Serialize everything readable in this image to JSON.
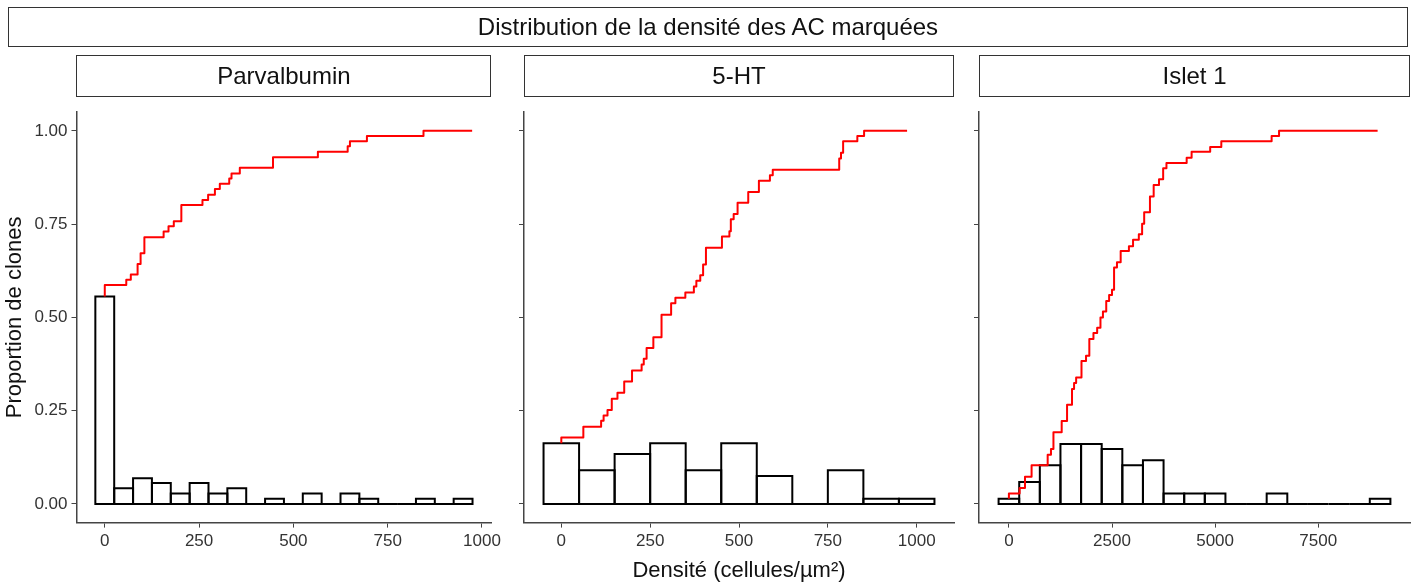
{
  "chart_data": [
    {
      "type": "histogram",
      "subtitle": "Parvalbumin",
      "ylabel": "Proportion de clones",
      "color": "#000000",
      "bins": [
        -25,
        25,
        75,
        125,
        175,
        225,
        275,
        325,
        375,
        425,
        475,
        525,
        575,
        625,
        675,
        725,
        775,
        825,
        875,
        925,
        975
      ],
      "values": [
        0.556,
        0.042,
        0.069,
        0.056,
        0.028,
        0.056,
        0.028,
        0.042,
        0,
        0.014,
        0,
        0.028,
        0,
        0.028,
        0.014,
        0,
        0,
        0.014,
        0,
        0.014
      ],
      "series": [
        {
          "type": "step",
          "color": "#ff0000",
          "x": [
            0,
            57,
            69,
            87,
            95,
            105,
            156,
            169,
            183,
            203,
            259,
            274,
            292,
            305,
            330,
            336,
            358,
            446,
            565,
            644,
            650,
            695,
            845,
            974
          ],
          "values": [
            0.556,
            0.587,
            0.601,
            0.615,
            0.643,
            0.672,
            0.715,
            0.73,
            0.744,
            0.758,
            0.801,
            0.815,
            0.829,
            0.844,
            0.858,
            0.872,
            0.886,
            0.901,
            0.929,
            0.944,
            0.959,
            0.972,
            0.986,
            1.0
          ]
        }
      ],
      "xlim": [
        -75,
        1025
      ],
      "xticks": [
        0,
        250,
        500,
        750,
        1000
      ],
      "ylim": [
        -0.05,
        1.05
      ],
      "yticks": [
        {
          "value": 0,
          "label": "0.00"
        },
        {
          "value": 0.25,
          "label": "0.25"
        },
        {
          "value": 0.5,
          "label": "0.50"
        },
        {
          "value": 0.75,
          "label": "0.75"
        },
        {
          "value": 1,
          "label": "1.00"
        }
      ],
      "grid": false
    },
    {
      "type": "histogram",
      "title": "Distribution de la densité des AC marquées",
      "subtitle": "5-HT",
      "xlabel": "Densité (cellules/µm²)",
      "tick_labels": "x",
      "color": "#000000",
      "bins": [
        -50,
        50,
        150,
        250,
        350,
        450,
        550,
        650,
        750,
        850,
        950,
        1050
      ],
      "values": [
        0.163,
        0.09,
        0.134,
        0.163,
        0.09,
        0.163,
        0.075,
        0,
        0.09,
        0.014,
        0.014
      ],
      "series": [
        {
          "type": "step",
          "color": "#ff0000",
          "x": [
            0,
            62,
            112,
            119,
            130,
            142,
            158,
            177,
            199,
            226,
            232,
            240,
            259,
            282,
            309,
            321,
            349,
            373,
            380,
            391,
            399,
            407,
            452,
            473,
            477,
            485,
            496,
            526,
            556,
            587,
            595,
            782,
            787,
            793,
            833,
            852,
            973
          ],
          "values": [
            0.163,
            0.178,
            0.207,
            0.223,
            0.237,
            0.252,
            0.282,
            0.298,
            0.328,
            0.358,
            0.374,
            0.389,
            0.418,
            0.447,
            0.507,
            0.538,
            0.553,
            0.567,
            0.583,
            0.598,
            0.613,
            0.642,
            0.687,
            0.717,
            0.731,
            0.763,
            0.777,
            0.807,
            0.836,
            0.866,
            0.881,
            0.896,
            0.926,
            0.941,
            0.972,
            0.986,
            1.0
          ]
        }
      ],
      "xlim": [
        -105,
        1105
      ],
      "xticks": [
        0,
        250,
        500,
        750,
        1000
      ],
      "ylim": [
        -0.05,
        1.05
      ],
      "yticks": [
        {
          "value": 0,
          "label": null
        },
        {
          "value": 0.25,
          "label": null
        },
        {
          "value": 0.5,
          "label": null
        },
        {
          "value": 0.75,
          "label": null
        },
        {
          "value": 1,
          "label": null
        }
      ],
      "grid": false
    },
    {
      "type": "histogram",
      "subtitle": "Islet 1",
      "tick_labels": "x",
      "color": "#000000",
      "bins": [
        -250,
        250,
        750,
        1250,
        1750,
        2250,
        2750,
        3250,
        3750,
        4250,
        4750,
        5250,
        5750,
        6250,
        6750,
        7250,
        7750,
        8250,
        8750,
        9250
      ],
      "values": [
        0.014,
        0.059,
        0.104,
        0.161,
        0.161,
        0.147,
        0.104,
        0.117,
        0.028,
        0.028,
        0.028,
        0,
        0,
        0.028,
        0,
        0,
        0,
        0,
        0.014
      ],
      "series": [
        {
          "type": "step",
          "color": "#ff0000",
          "x": [
            0,
            260,
            390,
            550,
            940,
            1020,
            1080,
            1280,
            1410,
            1530,
            1580,
            1630,
            1760,
            1870,
            1950,
            2050,
            2140,
            2220,
            2280,
            2360,
            2430,
            2500,
            2550,
            2620,
            2710,
            2910,
            3010,
            3150,
            3230,
            3280,
            3420,
            3510,
            3640,
            3740,
            3820,
            4310,
            4430,
            4880,
            5150,
            6370,
            6550,
            8940
          ],
          "values": [
            0.014,
            0.028,
            0.043,
            0.073,
            0.104,
            0.132,
            0.147,
            0.192,
            0.222,
            0.266,
            0.308,
            0.324,
            0.339,
            0.383,
            0.397,
            0.442,
            0.458,
            0.472,
            0.5,
            0.516,
            0.544,
            0.56,
            0.574,
            0.634,
            0.648,
            0.678,
            0.691,
            0.708,
            0.723,
            0.751,
            0.782,
            0.824,
            0.855,
            0.87,
            0.9,
            0.914,
            0.928,
            0.944,
            0.957,
            0.972,
            0.986,
            1.0
          ]
        }
      ],
      "xlim": [
        -725,
        9725
      ],
      "xticks": [
        0,
        2500,
        5000,
        7500
      ],
      "ylim": [
        -0.05,
        1.05
      ],
      "yticks": [
        {
          "value": 0,
          "label": null
        },
        {
          "value": 0.25,
          "label": null
        },
        {
          "value": 0.5,
          "label": null
        },
        {
          "value": 0.75,
          "label": null
        },
        {
          "value": 1,
          "label": null
        }
      ],
      "grid": false
    }
  ]
}
